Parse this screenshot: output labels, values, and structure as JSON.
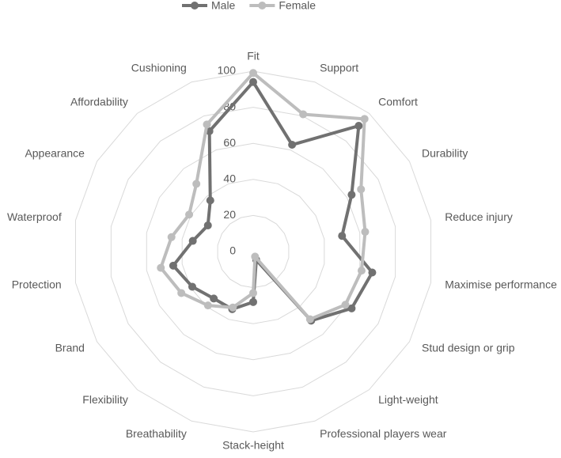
{
  "chart_data": {
    "type": "radar",
    "categories": [
      "Fit",
      "Support",
      "Comfort",
      "Durability",
      "Reduce injury",
      "Maximise performance",
      "Stud design or grip",
      "Light-weight",
      "Professional players wear",
      "Stack-height",
      "Breathability",
      "Flexibility",
      "Brand",
      "Protection",
      "Waterproof",
      "Appearance",
      "Affordability",
      "Cushioning"
    ],
    "series": [
      {
        "name": "Male",
        "color": "#717171",
        "values": [
          94,
          63,
          91,
          63,
          50,
          67,
          63,
          50,
          5,
          28,
          34,
          34,
          39,
          45,
          34,
          29,
          37,
          71
        ]
      },
      {
        "name": "Female",
        "color": "#bdbdbd",
        "values": [
          99,
          81,
          96,
          69,
          63,
          61,
          59,
          49,
          3,
          23,
          33,
          39,
          46,
          52,
          46,
          41,
          49,
          75
        ]
      }
    ],
    "ylim": [
      0,
      100
    ],
    "yticks": [
      0,
      20,
      40,
      60,
      80,
      100
    ],
    "grid": true,
    "legend": "top"
  }
}
